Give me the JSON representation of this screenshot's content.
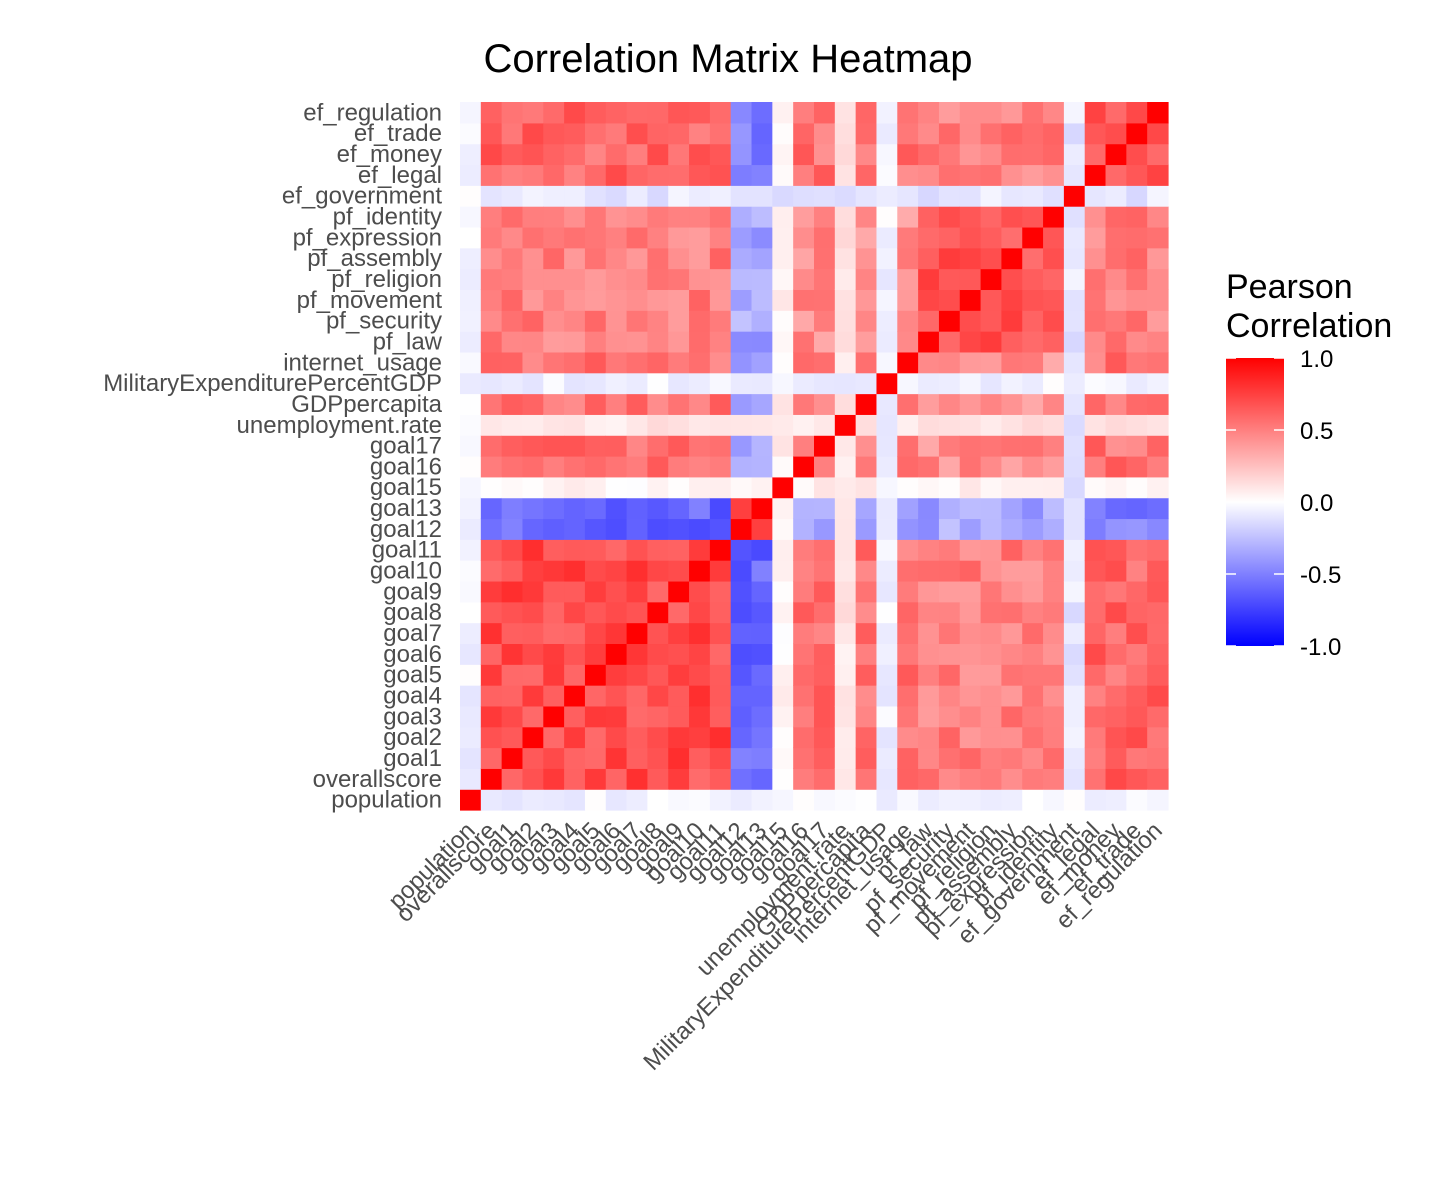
{
  "chart_data": {
    "type": "heatmap",
    "title": "Correlation Matrix Heatmap",
    "variables": [
      "population",
      "overallscore",
      "goal1",
      "goal2",
      "goal3",
      "goal4",
      "goal5",
      "goal6",
      "goal7",
      "goal8",
      "goal9",
      "goal10",
      "goal11",
      "goal12",
      "goal13",
      "goal15",
      "goal16",
      "goal17",
      "unemployment.rate",
      "GDPpercapita",
      "MilitaryExpenditurePercentGDP",
      "internet_usage",
      "pf_law",
      "pf_security",
      "pf_movement",
      "pf_religion",
      "pf_assembly",
      "pf_expression",
      "pf_identity",
      "ef_government",
      "ef_legal",
      "ef_money",
      "ef_trade",
      "ef_regulation"
    ],
    "groups": {
      "goals": [
        "overallscore",
        "goal1",
        "goal2",
        "goal3",
        "goal4",
        "goal5",
        "goal6",
        "goal7",
        "goal8",
        "goal9",
        "goal10",
        "goal11"
      ],
      "neg_goals": [
        "goal12",
        "goal13"
      ],
      "goal15": [
        "goal15"
      ],
      "other": [
        "goal16",
        "goal17",
        "unemployment.rate",
        "GDPpercapita",
        "internet_usage"
      ],
      "pf": [
        "pf_law",
        "pf_security",
        "pf_movement",
        "pf_religion",
        "pf_assembly",
        "pf_expression",
        "pf_identity"
      ],
      "ef": [
        "ef_legal",
        "ef_money",
        "ef_trade",
        "ef_regulation"
      ]
    },
    "approx_correlations": {
      "population_with_others": -0.05,
      "within_goals": 0.7,
      "goals_with_goal12_goal13": -0.6,
      "goal12_with_goal13": 0.85,
      "goals_with_other": 0.55,
      "goals_with_pf": 0.5,
      "goals_with_ef": 0.6,
      "goal12_13_with_other": -0.4,
      "goal12_13_with_pf": -0.35,
      "goal12_13_with_ef": -0.5,
      "goal15_with_others": 0.05,
      "MilitaryExpenditurePercentGDP_with_others": -0.05,
      "unemployment_rate_with_others": 0.1,
      "ef_government_with_others": -0.1,
      "within_pf": 0.65,
      "pf_with_ef": 0.5,
      "within_ef": 0.65,
      "diagonal": 1.0
    },
    "legend": {
      "title_line1": "Pearson",
      "title_line2": "Correlation",
      "ticks": [
        "1.0",
        "0.5",
        "0.0",
        "-0.5",
        "-1.0"
      ],
      "tick_values": [
        1.0,
        0.5,
        0.0,
        -0.5,
        -1.0
      ],
      "low_color": "#0000ff",
      "mid_color": "#ffffff",
      "high_color": "#ff0000",
      "range": [
        -1,
        1
      ],
      "placement": "right"
    },
    "x_axis_labels_rotation_deg": 45,
    "grid": false
  }
}
